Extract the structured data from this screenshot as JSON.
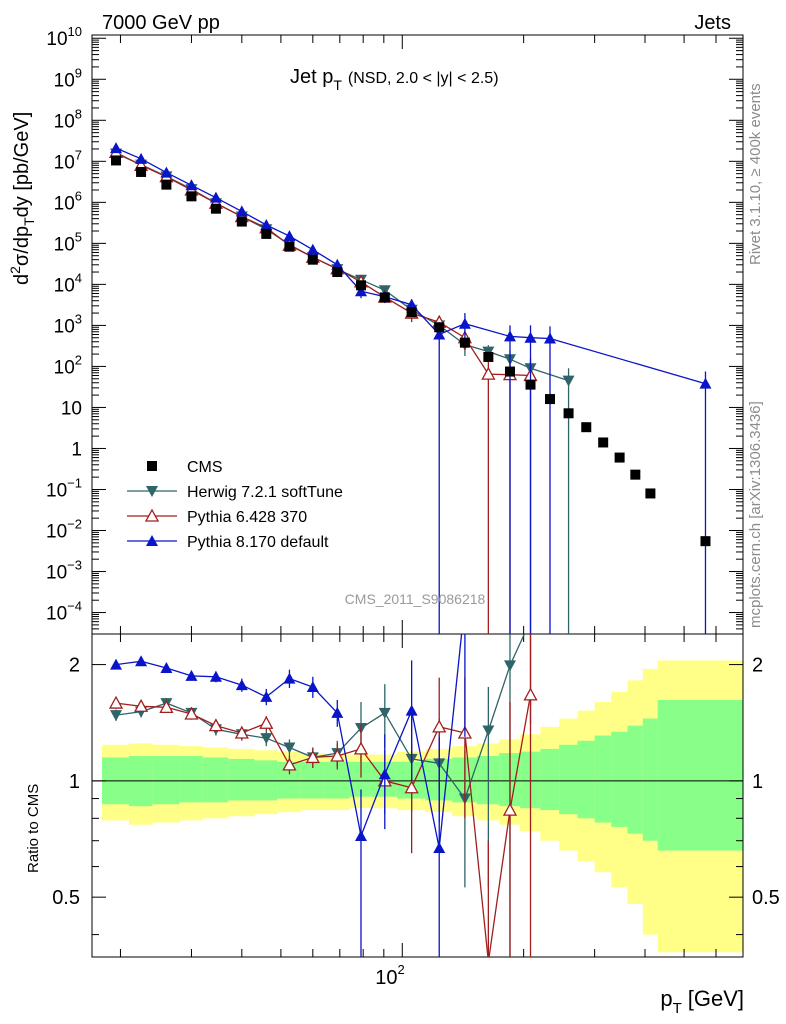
{
  "header": {
    "energy_label": "7000 GeV pp",
    "category_label": "Jets"
  },
  "side_labels": {
    "rivet": "Rivet 3.1.10, ≥ 400k events",
    "mcplots": "mcplots.cern.ch [arXiv:1306.3436]"
  },
  "chart_data": {
    "type": "scatter",
    "title": "Jet p_T (NSD, 2.0 < |y| < 2.5)",
    "title_main": "Jet p",
    "title_sub": "T",
    "title_extra": "(NSD, 2.0 < |y| < 2.5)",
    "watermark": "CMS_2011_S9086218",
    "xscale": "log",
    "xlim": [
      17,
      700
    ],
    "xlabel": "p_T [GeV]",
    "xlabel_main": "p",
    "xlabel_sub": "T",
    "xlabel_unit": "[GeV]",
    "x_major_tick_label": "10",
    "x_major_tick_exp": "2",
    "upper": {
      "yscale": "log",
      "ylim": [
        3e-05,
        12000000000
      ],
      "ylabel": "d²σ/dp_T dy [pb/GeV]",
      "ylabel_parts": [
        "d",
        "2",
        "σ/dp",
        "T",
        "dy [pb/GeV]"
      ],
      "ytick_labels": [
        {
          "v": 10000000000,
          "base": "10",
          "exp": "10"
        },
        {
          "v": 1000000000,
          "base": "10",
          "exp": "9"
        },
        {
          "v": 100000000,
          "base": "10",
          "exp": "8"
        },
        {
          "v": 10000000,
          "base": "10",
          "exp": "7"
        },
        {
          "v": 1000000,
          "base": "10",
          "exp": "6"
        },
        {
          "v": 100000,
          "base": "10",
          "exp": "5"
        },
        {
          "v": 10000,
          "base": "10",
          "exp": "4"
        },
        {
          "v": 1000,
          "base": "10",
          "exp": "3"
        },
        {
          "v": 100,
          "base": "10",
          "exp": "2"
        },
        {
          "v": 10,
          "base": "10",
          "exp": ""
        },
        {
          "v": 1,
          "base": "1",
          "exp": ""
        },
        {
          "v": 0.1,
          "base": "10",
          "exp": "−1"
        },
        {
          "v": 0.01,
          "base": "10",
          "exp": "−2"
        },
        {
          "v": 0.001,
          "base": "10",
          "exp": "−3"
        },
        {
          "v": 0.0001,
          "base": "10",
          "exp": "−4"
        }
      ]
    },
    "lower": {
      "yscale": "log",
      "ylim": [
        0.35,
        2.4
      ],
      "ylabel": "Ratio to CMS",
      "ytick_labels": [
        {
          "v": 2,
          "label": "2"
        },
        {
          "v": 1,
          "label": "1"
        },
        {
          "v": 0.5,
          "label": "0.5"
        }
      ]
    },
    "bins": [
      {
        "lo": 18,
        "hi": 21,
        "x": 19.5
      },
      {
        "lo": 21,
        "hi": 24,
        "x": 22.5
      },
      {
        "lo": 24,
        "hi": 28,
        "x": 26
      },
      {
        "lo": 28,
        "hi": 32,
        "x": 30
      },
      {
        "lo": 32,
        "hi": 37,
        "x": 34.5
      },
      {
        "lo": 37,
        "hi": 43,
        "x": 40
      },
      {
        "lo": 43,
        "hi": 49,
        "x": 46
      },
      {
        "lo": 49,
        "hi": 56,
        "x": 52.5
      },
      {
        "lo": 56,
        "hi": 64,
        "x": 60
      },
      {
        "lo": 64,
        "hi": 74,
        "x": 69
      },
      {
        "lo": 74,
        "hi": 84,
        "x": 79
      },
      {
        "lo": 84,
        "hi": 97,
        "x": 90.5
      },
      {
        "lo": 97,
        "hi": 114,
        "x": 105.5
      },
      {
        "lo": 114,
        "hi": 133,
        "x": 123.5
      },
      {
        "lo": 133,
        "hi": 153,
        "x": 143
      },
      {
        "lo": 153,
        "hi": 174,
        "x": 163.5
      },
      {
        "lo": 174,
        "hi": 196,
        "x": 185
      },
      {
        "lo": 196,
        "hi": 220,
        "x": 208
      },
      {
        "lo": 220,
        "hi": 245,
        "x": 232.5
      },
      {
        "lo": 245,
        "hi": 272,
        "x": 258.5
      },
      {
        "lo": 272,
        "hi": 300,
        "x": 286
      },
      {
        "lo": 300,
        "hi": 330,
        "x": 315
      },
      {
        "lo": 330,
        "hi": 362,
        "x": 346
      },
      {
        "lo": 362,
        "hi": 395,
        "x": 378.5
      },
      {
        "lo": 395,
        "hi": 430,
        "x": 412.5
      },
      {
        "lo": 430,
        "hi": 700,
        "x": 565
      }
    ],
    "cms_values": [
      10500000,
      5500000,
      2700000,
      1400000,
      700000,
      340000,
      170000,
      83000,
      40000,
      20000,
      9500,
      4800,
      2100,
      900,
      380,
      170,
      75,
      36,
      16,
      7.2,
      3.3,
      1.4,
      0.6,
      0.23,
      0.08,
      0.0055
    ],
    "band_inner": [
      [
        0.87,
        1.15
      ],
      [
        0.86,
        1.16
      ],
      [
        0.87,
        1.16
      ],
      [
        0.88,
        1.16
      ],
      [
        0.88,
        1.15
      ],
      [
        0.89,
        1.14
      ],
      [
        0.89,
        1.13
      ],
      [
        0.9,
        1.12
      ],
      [
        0.9,
        1.12
      ],
      [
        0.9,
        1.12
      ],
      [
        0.91,
        1.12
      ],
      [
        0.91,
        1.12
      ],
      [
        0.9,
        1.12
      ],
      [
        0.89,
        1.14
      ],
      [
        0.88,
        1.15
      ],
      [
        0.87,
        1.16
      ],
      [
        0.86,
        1.18
      ],
      [
        0.85,
        1.19
      ],
      [
        0.84,
        1.21
      ],
      [
        0.82,
        1.24
      ],
      [
        0.8,
        1.27
      ],
      [
        0.78,
        1.31
      ],
      [
        0.76,
        1.34
      ],
      [
        0.73,
        1.39
      ],
      [
        0.7,
        1.45
      ],
      [
        0.66,
        1.62
      ]
    ],
    "band_outer": [
      [
        0.79,
        1.24
      ],
      [
        0.77,
        1.25
      ],
      [
        0.78,
        1.24
      ],
      [
        0.79,
        1.23
      ],
      [
        0.8,
        1.22
      ],
      [
        0.81,
        1.21
      ],
      [
        0.82,
        1.2
      ],
      [
        0.83,
        1.19
      ],
      [
        0.84,
        1.18
      ],
      [
        0.84,
        1.17
      ],
      [
        0.85,
        1.17
      ],
      [
        0.85,
        1.17
      ],
      [
        0.84,
        1.19
      ],
      [
        0.83,
        1.21
      ],
      [
        0.81,
        1.23
      ],
      [
        0.79,
        1.25
      ],
      [
        0.77,
        1.28
      ],
      [
        0.74,
        1.32
      ],
      [
        0.7,
        1.38
      ],
      [
        0.66,
        1.45
      ],
      [
        0.62,
        1.52
      ],
      [
        0.58,
        1.6
      ],
      [
        0.53,
        1.7
      ],
      [
        0.48,
        1.82
      ],
      [
        0.4,
        1.95
      ],
      [
        0.36,
        2.05
      ]
    ],
    "series": [
      {
        "name": "CMS",
        "legend_label": "CMS",
        "color": "#000000",
        "marker": "square",
        "points": [
          [
            19.5,
            10500000
          ],
          [
            22.5,
            5500000
          ],
          [
            26,
            2700000
          ],
          [
            30,
            1400000
          ],
          [
            34.5,
            700000
          ],
          [
            40,
            340000
          ],
          [
            46,
            170000
          ],
          [
            52.5,
            83000
          ],
          [
            60,
            40000
          ],
          [
            69,
            20000
          ],
          [
            79,
            9500
          ],
          [
            90.5,
            4800
          ],
          [
            105.5,
            2100
          ],
          [
            123.5,
            900
          ],
          [
            143,
            380
          ],
          [
            163.5,
            170
          ],
          [
            185,
            75
          ],
          [
            208,
            36
          ],
          [
            232.5,
            16
          ],
          [
            258.5,
            7.2
          ],
          [
            286,
            3.3
          ],
          [
            315,
            1.4
          ],
          [
            346,
            0.6
          ],
          [
            378.5,
            0.23
          ],
          [
            412.5,
            0.08
          ],
          [
            565,
            0.0055
          ]
        ],
        "ratio": []
      },
      {
        "name": "Herwig 7.2.1 softTune",
        "legend_label": "Herwig 7.2.1 softTune",
        "color": "#2f6469",
        "marker": "triangle-down",
        "points": [
          [
            19.5,
            15500000,
            17000000,
            14000000
          ],
          [
            22.5,
            8300000,
            9000000,
            7600000
          ],
          [
            26,
            4300000,
            4700000,
            3900000
          ],
          [
            30,
            2100000,
            2300000,
            1900000
          ],
          [
            34.5,
            950000,
            1050000,
            850000
          ],
          [
            40,
            450000,
            500000,
            400000
          ],
          [
            46,
            220000,
            245000,
            195000
          ],
          [
            52.5,
            93000,
            105000,
            81000
          ],
          [
            60,
            46000,
            52000,
            40000
          ],
          [
            69,
            23500,
            27000,
            20000
          ],
          [
            79,
            13000,
            16000,
            10000
          ],
          [
            90.5,
            7200,
            9000,
            5400
          ],
          [
            105.5,
            2400,
            3400,
            1500
          ],
          [
            123.5,
            1000,
            1500,
            600
          ],
          [
            143,
            340,
            520,
            180
          ],
          [
            163.5,
            230,
            330,
            130
          ],
          [
            185,
            150,
            240,
            70
          ],
          [
            208,
            90,
            160,
            35
          ],
          [
            258.5,
            45,
            90,
            3e-05
          ]
        ],
        "ratio": [
          [
            19.5,
            1.48,
            1.53,
            1.43
          ],
          [
            22.5,
            1.51,
            1.56,
            1.46
          ],
          [
            26,
            1.59,
            1.64,
            1.54
          ],
          [
            30,
            1.5,
            1.55,
            1.45
          ],
          [
            34.5,
            1.36,
            1.41,
            1.31
          ],
          [
            40,
            1.32,
            1.37,
            1.27
          ],
          [
            46,
            1.29,
            1.35,
            1.23
          ],
          [
            52.5,
            1.22,
            1.28,
            1.15
          ],
          [
            60,
            1.15,
            1.22,
            1.08
          ],
          [
            69,
            1.18,
            1.27,
            1.09
          ],
          [
            79,
            1.37,
            1.6,
            1.12
          ],
          [
            90.5,
            1.5,
            1.78,
            1.22
          ],
          [
            105.5,
            1.14,
            1.45,
            0.83
          ],
          [
            123.5,
            1.11,
            1.45,
            0.78
          ],
          [
            143,
            0.9,
            1.2,
            0.53
          ],
          [
            163.5,
            1.35,
            1.75,
            0.53
          ],
          [
            185,
            1.99,
            2.45,
            0.35
          ],
          [
            208,
            2.6,
            3.5,
            1.4
          ]
        ]
      },
      {
        "name": "Pythia 6.428 370",
        "legend_label": "Pythia 6.428 370",
        "color": "#a01e1e",
        "marker": "triangle-up-open",
        "points": [
          [
            19.5,
            16500000,
            18000000,
            15000000
          ],
          [
            22.5,
            8000000,
            8800000,
            7200000
          ],
          [
            26,
            4200000,
            4600000,
            3800000
          ],
          [
            30,
            2000000,
            2200000,
            1800000
          ],
          [
            34.5,
            950000,
            1050000,
            850000
          ],
          [
            40,
            450000,
            500000,
            400000
          ],
          [
            46,
            240000,
            265000,
            215000
          ],
          [
            52.5,
            90000,
            100000,
            80000
          ],
          [
            60,
            46000,
            52000,
            40000
          ],
          [
            69,
            24000,
            27000,
            21000
          ],
          [
            79,
            11500,
            14500,
            8500
          ],
          [
            90.5,
            4900,
            6200,
            3600
          ],
          [
            105.5,
            2000,
            2800,
            1200
          ],
          [
            123.5,
            1200,
            1700,
            700
          ],
          [
            143,
            500,
            750,
            250
          ],
          [
            163.5,
            65,
            130,
            3e-05
          ],
          [
            185,
            63,
            130,
            3e-05
          ],
          [
            208,
            60,
            130,
            3e-05
          ]
        ],
        "ratio": [
          [
            19.5,
            1.59,
            1.64,
            1.54
          ],
          [
            22.5,
            1.56,
            1.61,
            1.51
          ],
          [
            26,
            1.55,
            1.6,
            1.5
          ],
          [
            30,
            1.49,
            1.54,
            1.44
          ],
          [
            34.5,
            1.39,
            1.44,
            1.34
          ],
          [
            40,
            1.33,
            1.38,
            1.28
          ],
          [
            46,
            1.41,
            1.47,
            1.35
          ],
          [
            52.5,
            1.1,
            1.16,
            1.04
          ],
          [
            60,
            1.15,
            1.22,
            1.08
          ],
          [
            69,
            1.16,
            1.25,
            1.07
          ],
          [
            79,
            1.21,
            1.4,
            1.02
          ],
          [
            90.5,
            1.0,
            1.2,
            0.82
          ],
          [
            105.5,
            0.96,
            1.25,
            0.65
          ],
          [
            123.5,
            1.38,
            1.85,
            0.95
          ],
          [
            143,
            1.33,
            1.85,
            0.8
          ],
          [
            163.5,
            0.34,
            0.7,
            0.3
          ],
          [
            185,
            0.84,
            1.6,
            0.3
          ],
          [
            208,
            1.67,
            3.3,
            0.3
          ]
        ]
      },
      {
        "name": "Pythia 8.170 default",
        "legend_label": "Pythia 8.170 default",
        "color": "#0a14c8",
        "marker": "triangle-up",
        "points": [
          [
            19.5,
            21000000,
            23000000,
            19000000
          ],
          [
            22.5,
            11500000,
            12500000,
            10500000
          ],
          [
            26,
            5300000,
            5800000,
            4800000
          ],
          [
            30,
            2600000,
            2850000,
            2350000
          ],
          [
            34.5,
            1300000,
            1420000,
            1180000
          ],
          [
            40,
            600000,
            660000,
            540000
          ],
          [
            46,
            280000,
            310000,
            250000
          ],
          [
            52.5,
            150000,
            165000,
            135000
          ],
          [
            60,
            70000,
            78000,
            62000
          ],
          [
            69,
            30000,
            34000,
            26000
          ],
          [
            79,
            6800,
            9000,
            4600
          ],
          [
            90.5,
            5000,
            6500,
            3500
          ],
          [
            105.5,
            3200,
            4300,
            2100
          ],
          [
            123.5,
            600,
            1200,
            3e-05
          ],
          [
            143,
            1100,
            2000,
            400
          ],
          [
            185,
            540,
            1000,
            3e-05
          ],
          [
            208,
            500,
            1000,
            3e-05
          ],
          [
            232.5,
            480,
            950,
            3e-05
          ],
          [
            565,
            38,
            75,
            3e-05
          ]
        ],
        "ratio": [
          [
            19.5,
            2.0,
            2.05,
            1.95
          ],
          [
            22.5,
            2.04,
            2.09,
            1.99
          ],
          [
            26,
            1.96,
            2.01,
            1.91
          ],
          [
            30,
            1.87,
            1.92,
            1.82
          ],
          [
            34.5,
            1.86,
            1.92,
            1.8
          ],
          [
            40,
            1.77,
            1.84,
            1.7
          ],
          [
            46,
            1.65,
            1.73,
            1.57
          ],
          [
            52.5,
            1.84,
            1.94,
            1.74
          ],
          [
            60,
            1.75,
            1.86,
            1.64
          ],
          [
            69,
            1.5,
            1.62,
            1.38
          ],
          [
            79,
            0.72,
            0.95,
            0.35
          ],
          [
            90.5,
            1.04,
            1.32,
            0.75
          ],
          [
            105.5,
            1.52,
            2.05,
            1.0
          ],
          [
            123.5,
            0.67,
            1.3,
            0.35
          ],
          [
            143,
            2.9,
            4.5,
            1.3
          ]
        ]
      }
    ]
  }
}
